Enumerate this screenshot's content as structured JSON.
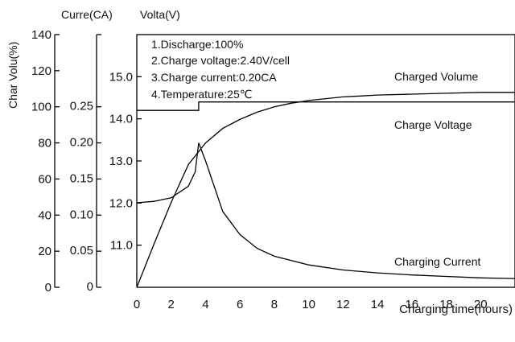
{
  "chart_data": {
    "type": "line",
    "axes": {
      "current_label": "Curre(CA)",
      "voltage_label": "Volta(V)",
      "charge_volume_label": "Char Volu(%)",
      "xlabel": "Charging time(hours)",
      "xlim": [
        0,
        22
      ],
      "x_ticks": [
        "0",
        "2",
        "4",
        "6",
        "8",
        "10",
        "12",
        "14",
        "16",
        "18",
        "20"
      ],
      "charge_volume_lim": [
        0,
        140
      ],
      "charge_volume_ticks": [
        "0",
        "20",
        "40",
        "60",
        "80",
        "100",
        "120",
        "140"
      ],
      "current_lim": [
        0,
        0.35
      ],
      "current_ticks": [
        "0",
        "0.05",
        "0.10",
        "0.15",
        "0.20",
        "0.25"
      ],
      "voltage_lim": [
        10.0,
        16.0
      ],
      "voltage_ticks": [
        "11.0",
        "12.0",
        "13.0",
        "14.0",
        "15.0"
      ]
    },
    "notes": [
      "1.Discharge:100%",
      "2.Charge voltage:2.40V/cell",
      "3.Charge current:0.20CA",
      "4.Temperature:25℃"
    ],
    "series": [
      {
        "name": "Charged Volume",
        "unit_axis": "charge_volume",
        "x": [
          0,
          1,
          2,
          3,
          4,
          5,
          6,
          7,
          8,
          9,
          10,
          11,
          12,
          13,
          14,
          16,
          18,
          20,
          22
        ],
        "y": [
          0,
          24,
          47,
          68,
          80,
          88,
          93,
          97,
          100,
          102,
          103.5,
          104.5,
          105.5,
          106,
          106.5,
          107,
          107.5,
          108,
          108
        ]
      },
      {
        "name": "Charge Voltage",
        "unit_axis": "voltage",
        "x": [
          0,
          3.6,
          3.6,
          22
        ],
        "y": [
          14.2,
          14.2,
          14.4,
          14.4
        ]
      },
      {
        "name": "Charging Current",
        "unit_axis": "current",
        "x": [
          0,
          1,
          2,
          3,
          3.4,
          3.6,
          4,
          5,
          6,
          7,
          8,
          10,
          12,
          14,
          16,
          18,
          20,
          22
        ],
        "y": [
          0.117,
          0.119,
          0.124,
          0.14,
          0.16,
          0.2,
          0.175,
          0.105,
          0.073,
          0.054,
          0.043,
          0.031,
          0.024,
          0.02,
          0.017,
          0.015,
          0.013,
          0.012
        ]
      }
    ],
    "series_labels": [
      "Charged Volume",
      "Charge Voltage",
      "Charging Current"
    ]
  }
}
